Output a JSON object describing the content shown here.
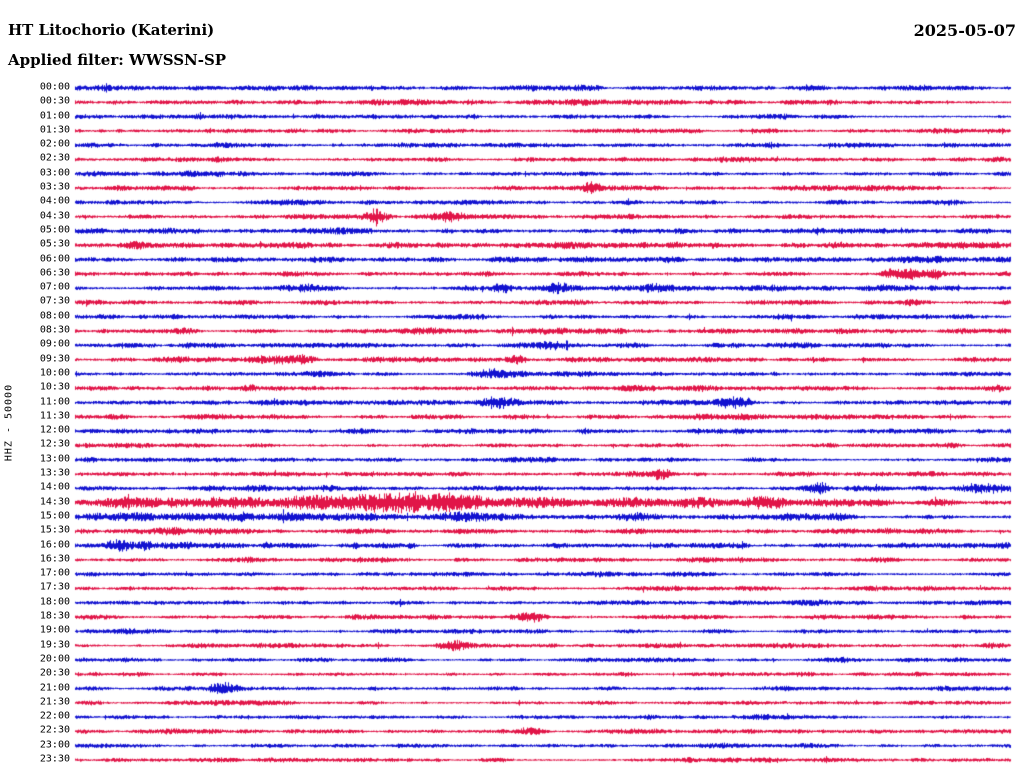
{
  "chart_data": {
    "type": "line",
    "subtype": "helicorder_day_plot",
    "station_title": "HT Litochorio (Katerini)",
    "date": "2025-05-07",
    "filter_text": "Applied filter: WWSSN-SP",
    "y_axis_label": "HHZ - 50000",
    "minutes_per_row": 30,
    "time_range": [
      "00:00",
      "23:30"
    ],
    "grid": false,
    "legend": false,
    "trace_colors": {
      "blue": "#1212d0",
      "red": "#e11548"
    },
    "rows": [
      {
        "label": "00:00",
        "color": "blue",
        "base": 1.7,
        "events": []
      },
      {
        "label": "00:30",
        "color": "red",
        "base": 1.7,
        "events": []
      },
      {
        "label": "01:00",
        "color": "blue",
        "base": 1.7,
        "events": []
      },
      {
        "label": "01:30",
        "color": "red",
        "base": 1.7,
        "events": []
      },
      {
        "label": "02:00",
        "color": "blue",
        "base": 1.7,
        "events": []
      },
      {
        "label": "02:30",
        "color": "red",
        "base": 1.7,
        "events": []
      },
      {
        "label": "03:00",
        "color": "blue",
        "base": 1.6,
        "events": []
      },
      {
        "label": "03:30",
        "color": "red",
        "base": 1.6,
        "events": [
          {
            "p": 0.552,
            "a": 4.5,
            "w": 0.006
          }
        ]
      },
      {
        "label": "04:00",
        "color": "blue",
        "base": 1.6,
        "events": []
      },
      {
        "label": "04:30",
        "color": "red",
        "base": 1.7,
        "events": [
          {
            "p": 0.322,
            "a": 6.0,
            "w": 0.009
          },
          {
            "p": 0.398,
            "a": 3.0,
            "w": 0.018
          }
        ]
      },
      {
        "label": "05:00",
        "color": "blue",
        "base": 1.9,
        "events": []
      },
      {
        "label": "05:30",
        "color": "red",
        "base": 2.1,
        "events": []
      },
      {
        "label": "06:00",
        "color": "blue",
        "base": 1.9,
        "events": []
      },
      {
        "label": "06:30",
        "color": "red",
        "base": 1.8,
        "events": [
          {
            "p": 0.873,
            "a": 3.5,
            "w": 0.008
          },
          {
            "p": 0.897,
            "a": 4.5,
            "w": 0.007
          },
          {
            "p": 0.918,
            "a": 3.0,
            "w": 0.006
          }
        ]
      },
      {
        "label": "07:00",
        "color": "blue",
        "base": 1.8,
        "events": [
          {
            "p": 0.139,
            "a": 1.5,
            "w": 0.01
          },
          {
            "p": 0.24,
            "a": 2.2,
            "w": 0.012
          },
          {
            "p": 0.456,
            "a": 2.8,
            "w": 0.008
          },
          {
            "p": 0.518,
            "a": 3.2,
            "w": 0.012
          },
          {
            "p": 0.619,
            "a": 2.8,
            "w": 0.014
          }
        ]
      },
      {
        "label": "07:30",
        "color": "red",
        "base": 1.7,
        "events": [
          {
            "p": 0.9,
            "a": 1.6,
            "w": 0.008
          }
        ]
      },
      {
        "label": "08:00",
        "color": "blue",
        "base": 1.7,
        "events": []
      },
      {
        "label": "08:30",
        "color": "red",
        "base": 1.7,
        "events": []
      },
      {
        "label": "09:00",
        "color": "blue",
        "base": 1.7,
        "events": [
          {
            "p": 0.51,
            "a": 2.0,
            "w": 0.01
          }
        ]
      },
      {
        "label": "09:30",
        "color": "red",
        "base": 1.7,
        "events": [
          {
            "p": 0.219,
            "a": 2.5,
            "w": 0.015
          },
          {
            "p": 0.245,
            "a": 2.5,
            "w": 0.008
          },
          {
            "p": 0.47,
            "a": 3.0,
            "w": 0.008
          }
        ]
      },
      {
        "label": "10:00",
        "color": "blue",
        "base": 1.7,
        "events": [
          {
            "p": 0.44,
            "a": 3.2,
            "w": 0.014
          }
        ]
      },
      {
        "label": "10:30",
        "color": "red",
        "base": 1.7,
        "events": [
          {
            "p": 0.184,
            "a": 2.2,
            "w": 0.007
          },
          {
            "p": 0.987,
            "a": 2.2,
            "w": 0.005
          }
        ]
      },
      {
        "label": "11:00",
        "color": "blue",
        "base": 1.7,
        "events": [
          {
            "p": 0.45,
            "a": 3.0,
            "w": 0.013
          },
          {
            "p": 0.702,
            "a": 4.2,
            "w": 0.011
          }
        ]
      },
      {
        "label": "11:30",
        "color": "red",
        "base": 1.7,
        "events": []
      },
      {
        "label": "12:00",
        "color": "blue",
        "base": 1.6,
        "events": [
          {
            "p": 0.544,
            "a": 1.6,
            "w": 0.006
          }
        ]
      },
      {
        "label": "12:30",
        "color": "red",
        "base": 1.6,
        "events": [
          {
            "p": 0.806,
            "a": 1.6,
            "w": 0.006
          }
        ]
      },
      {
        "label": "13:00",
        "color": "blue",
        "base": 1.6,
        "events": []
      },
      {
        "label": "13:30",
        "color": "red",
        "base": 1.6,
        "events": [
          {
            "p": 0.627,
            "a": 5.5,
            "w": 0.006
          }
        ]
      },
      {
        "label": "14:00",
        "color": "blue",
        "base": 1.7,
        "events": [
          {
            "p": 0.795,
            "a": 4.0,
            "w": 0.01
          },
          {
            "p": 0.971,
            "a": 4.5,
            "w": 0.02
          }
        ]
      },
      {
        "label": "14:30",
        "color": "red",
        "base": 2.2,
        "events": [
          {
            "p": 0.07,
            "a": 2.5,
            "w": 0.03
          },
          {
            "p": 0.16,
            "a": 3.5,
            "w": 0.035
          },
          {
            "p": 0.27,
            "a": 5.5,
            "w": 0.04
          },
          {
            "p": 0.345,
            "a": 6.5,
            "w": 0.03
          },
          {
            "p": 0.41,
            "a": 5.0,
            "w": 0.03
          },
          {
            "p": 0.5,
            "a": 3.0,
            "w": 0.03
          },
          {
            "p": 0.58,
            "a": 2.2,
            "w": 0.03
          },
          {
            "p": 0.665,
            "a": 2.0,
            "w": 0.02
          },
          {
            "p": 0.735,
            "a": 3.8,
            "w": 0.018
          },
          {
            "p": 0.8,
            "a": 2.2,
            "w": 0.015
          },
          {
            "p": 0.855,
            "a": 2.8,
            "w": 0.012
          }
        ]
      },
      {
        "label": "15:00",
        "color": "blue",
        "base": 2.0,
        "events": [
          {
            "p": 0.1,
            "a": 1.2,
            "w": 0.06
          },
          {
            "p": 0.22,
            "a": 1.4,
            "w": 0.05
          },
          {
            "p": 0.33,
            "a": 1.8,
            "w": 0.03
          },
          {
            "p": 0.405,
            "a": 2.2,
            "w": 0.015
          },
          {
            "p": 0.6,
            "a": 3.2,
            "w": 0.01
          }
        ]
      },
      {
        "label": "15:30",
        "color": "red",
        "base": 1.8,
        "events": [
          {
            "p": 0.13,
            "a": 1.2,
            "w": 0.05
          }
        ]
      },
      {
        "label": "16:00",
        "color": "blue",
        "base": 1.6,
        "events": [
          {
            "p": 0.047,
            "a": 4.5,
            "w": 0.009
          },
          {
            "p": 0.075,
            "a": 2.0,
            "w": 0.006
          },
          {
            "p": 0.12,
            "a": 1.8,
            "w": 0.004
          },
          {
            "p": 0.205,
            "a": 1.8,
            "w": 0.003
          },
          {
            "p": 0.3,
            "a": 1.5,
            "w": 0.003
          },
          {
            "p": 0.36,
            "a": 2.2,
            "w": 0.003
          },
          {
            "p": 0.43,
            "a": 1.5,
            "w": 0.003
          }
        ]
      },
      {
        "label": "16:30",
        "color": "red",
        "base": 1.6,
        "events": []
      },
      {
        "label": "17:00",
        "color": "blue",
        "base": 1.5,
        "events": []
      },
      {
        "label": "17:30",
        "color": "red",
        "base": 1.5,
        "events": []
      },
      {
        "label": "18:00",
        "color": "blue",
        "base": 1.5,
        "events": []
      },
      {
        "label": "18:30",
        "color": "red",
        "base": 1.5,
        "events": [
          {
            "p": 0.49,
            "a": 2.8,
            "w": 0.01
          }
        ]
      },
      {
        "label": "19:00",
        "color": "blue",
        "base": 1.5,
        "events": []
      },
      {
        "label": "19:30",
        "color": "red",
        "base": 1.5,
        "events": [
          {
            "p": 0.405,
            "a": 2.6,
            "w": 0.012
          }
        ]
      },
      {
        "label": "20:00",
        "color": "blue",
        "base": 1.5,
        "events": []
      },
      {
        "label": "20:30",
        "color": "red",
        "base": 1.5,
        "events": []
      },
      {
        "label": "21:00",
        "color": "blue",
        "base": 1.5,
        "events": [
          {
            "p": 0.158,
            "a": 3.8,
            "w": 0.01
          }
        ]
      },
      {
        "label": "21:30",
        "color": "red",
        "base": 1.5,
        "events": []
      },
      {
        "label": "22:00",
        "color": "blue",
        "base": 1.5,
        "events": []
      },
      {
        "label": "22:30",
        "color": "red",
        "base": 1.5,
        "events": [
          {
            "p": 0.487,
            "a": 2.6,
            "w": 0.01
          }
        ]
      },
      {
        "label": "23:00",
        "color": "blue",
        "base": 1.5,
        "events": []
      },
      {
        "label": "23:30",
        "color": "red",
        "base": 1.5,
        "events": []
      }
    ]
  }
}
